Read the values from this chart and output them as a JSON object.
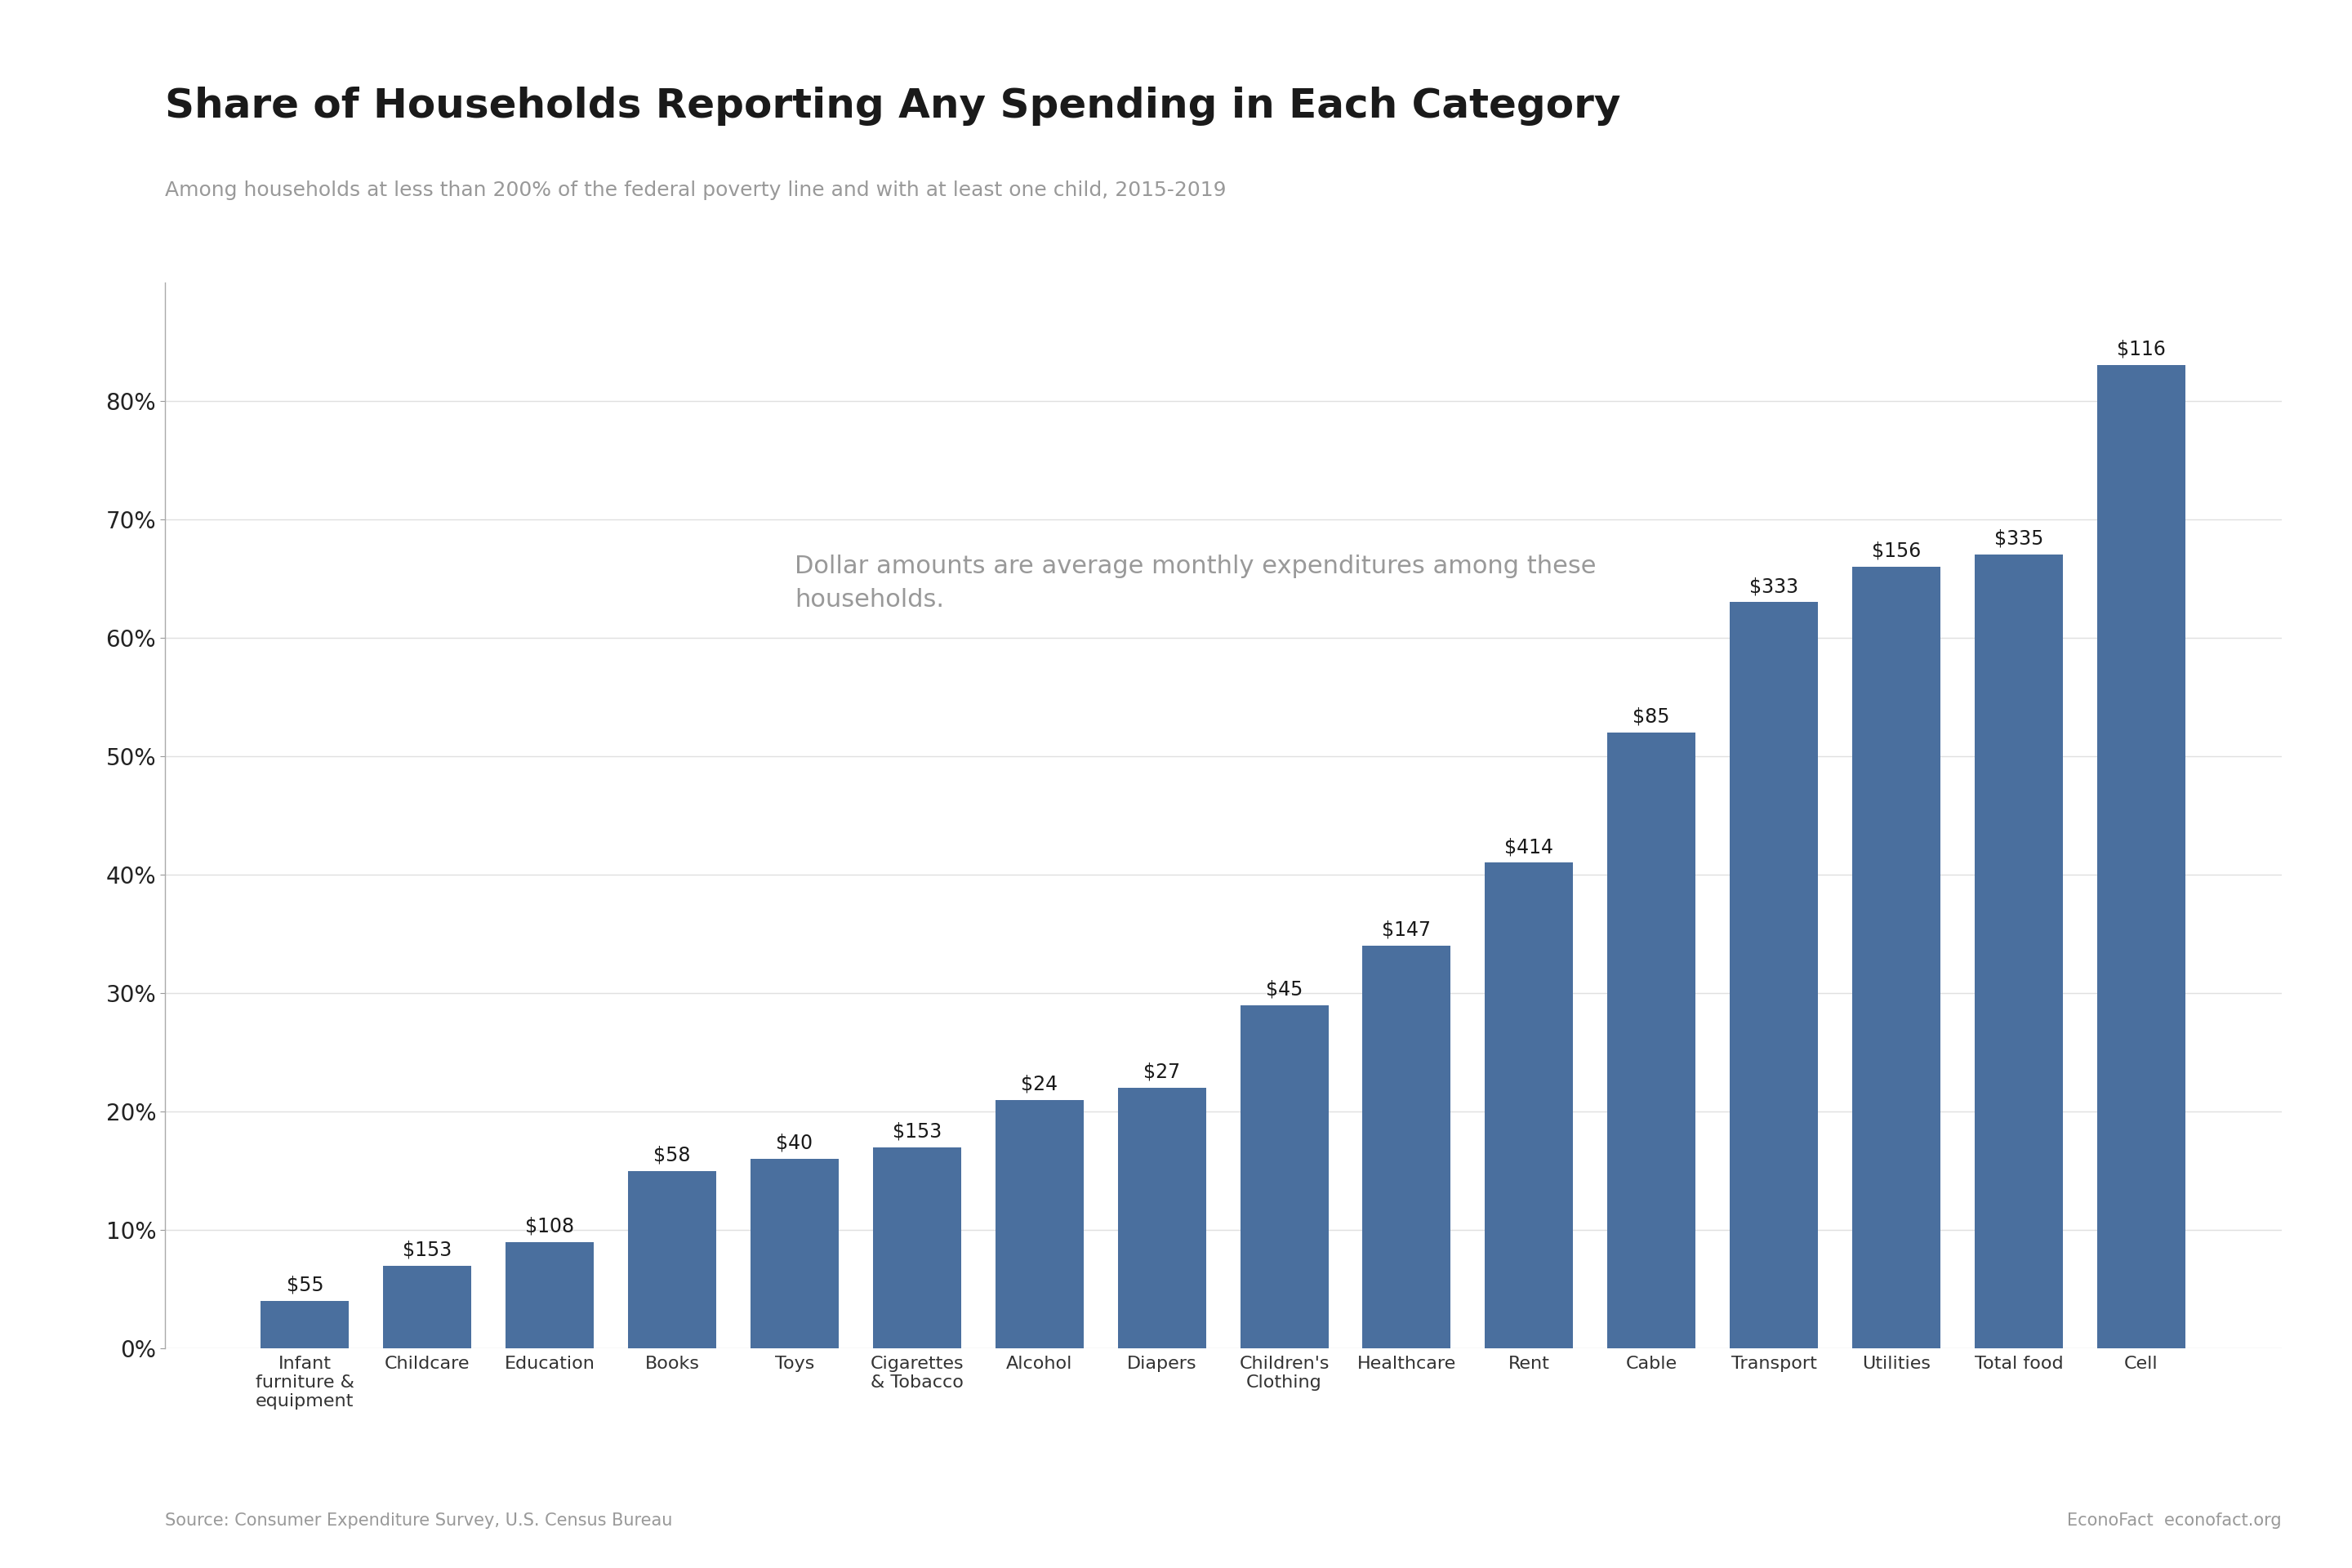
{
  "title": "Share of Households Reporting Any Spending in Each Category",
  "subtitle": "Among households at less than 200% of the federal poverty line and with at least one child, 2015-2019",
  "categories": [
    "Infant\nfurniture &\nequipment",
    "Childcare",
    "Education",
    "Books",
    "Toys",
    "Cigarettes\n& Tobacco",
    "Alcohol",
    "Diapers",
    "Children's\nClothing",
    "Healthcare",
    "Rent",
    "Cable",
    "Transport",
    "Utilities",
    "Total food",
    "Cell"
  ],
  "values": [
    4.0,
    7.0,
    9.0,
    15.0,
    16.0,
    17.0,
    21.0,
    22.0,
    29.0,
    34.0,
    41.0,
    52.0,
    63.0,
    66.0,
    67.0,
    83.0
  ],
  "dollar_labels": [
    "$55",
    "$153",
    "$108",
    "$58",
    "$40",
    "$153",
    "$24",
    "$27",
    "$45",
    "$147",
    "$414",
    "$85",
    "$333",
    "$156",
    "$335",
    "$116"
  ],
  "bar_color": "#4a6f9e",
  "annotation_line1": "Dollar amounts are average monthly expenditures among these",
  "annotation_line2": "households.",
  "annotation_color": "#999999",
  "source_text": "Source: Consumer Expenditure Survey, U.S. Census Bureau",
  "source_right_text": "EconoFact  econofact.org",
  "title_color": "#1a1a1a",
  "subtitle_color": "#999999",
  "ylim": [
    0,
    90
  ],
  "yticks": [
    0,
    10,
    20,
    30,
    40,
    50,
    60,
    70,
    80
  ],
  "grid_color": "#e0e0e0",
  "background_color": "#ffffff",
  "title_fontsize": 36,
  "subtitle_fontsize": 18,
  "tick_fontsize": 20,
  "xlabel_fontsize": 16,
  "dollar_fontsize": 17,
  "annotation_fontsize": 22,
  "source_fontsize": 15
}
